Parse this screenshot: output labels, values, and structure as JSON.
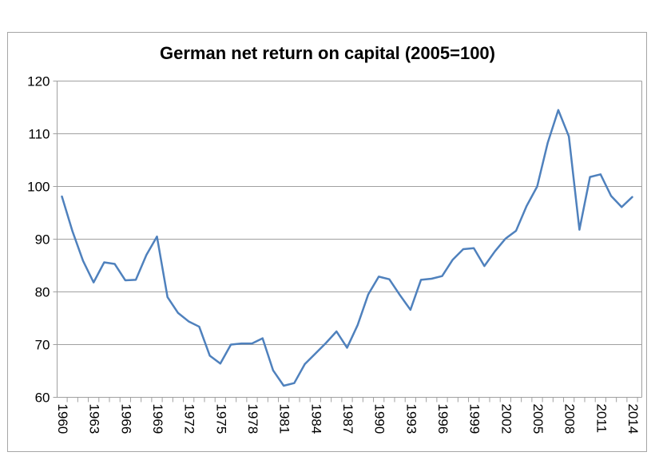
{
  "chart_data": {
    "type": "line",
    "title": "German net return on capital (2005=100)",
    "xlabel": "",
    "ylabel": "",
    "ylim": [
      60,
      120
    ],
    "yticks": [
      60,
      70,
      80,
      90,
      100,
      110,
      120
    ],
    "xlim": [
      1960,
      2014
    ],
    "xticks": [
      "1960",
      "1963",
      "1966",
      "1969",
      "1972",
      "1975",
      "1978",
      "1981",
      "1984",
      "1987",
      "1990",
      "1993",
      "1996",
      "1999",
      "2002",
      "2005",
      "2008",
      "2011",
      "2014"
    ],
    "grid": true,
    "legend": "none",
    "line_color": "#4f81bd",
    "x": [
      1960,
      1961,
      1962,
      1963,
      1964,
      1965,
      1966,
      1967,
      1968,
      1969,
      1970,
      1971,
      1972,
      1973,
      1974,
      1975,
      1976,
      1977,
      1978,
      1979,
      1980,
      1981,
      1982,
      1983,
      1984,
      1985,
      1986,
      1987,
      1988,
      1989,
      1990,
      1991,
      1992,
      1993,
      1994,
      1995,
      1996,
      1997,
      1998,
      1999,
      2000,
      2001,
      2002,
      2003,
      2004,
      2005,
      2006,
      2007,
      2008,
      2009,
      2010,
      2011,
      2012,
      2013,
      2014
    ],
    "series": [
      {
        "values": [
          98.1,
          91.5,
          85.9,
          81.8,
          85.6,
          85.3,
          82.2,
          82.3,
          87.0,
          90.5,
          79.0,
          76.0,
          74.4,
          73.4,
          67.9,
          66.4,
          70.0,
          70.2,
          70.2,
          71.2,
          65.1,
          62.2,
          62.7,
          66.3,
          68.3,
          70.3,
          72.5,
          69.4,
          73.7,
          79.5,
          82.9,
          82.4,
          79.4,
          76.6,
          82.3,
          82.5,
          83.0,
          86.1,
          88.1,
          88.3,
          84.9,
          87.7,
          90.1,
          91.6,
          96.3,
          100.0,
          108.3,
          114.5,
          109.5,
          91.8,
          101.8,
          102.3,
          98.2,
          96.1,
          98.0
        ]
      }
    ]
  }
}
